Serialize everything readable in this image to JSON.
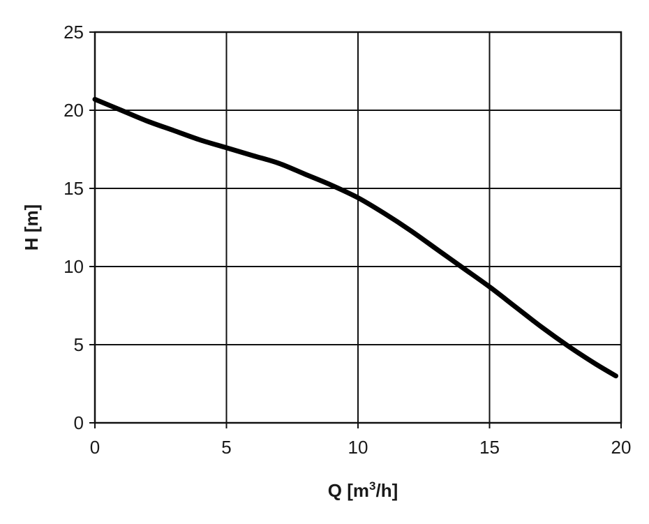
{
  "chart_data": {
    "type": "line",
    "title": "",
    "xlabel": "Q [m",
    "xlabel_sup": "3",
    "xlabel_tail": "/h]",
    "ylabel": "H [m]",
    "xlim": [
      0,
      20
    ],
    "ylim": [
      0,
      25
    ],
    "xticks": [
      0,
      5,
      10,
      15,
      20
    ],
    "yticks": [
      0,
      5,
      10,
      15,
      20,
      25
    ],
    "grid": true,
    "legend": "none",
    "line_color": "#000000",
    "grid_color": "#111111",
    "series": [
      {
        "x": [
          0,
          1,
          2,
          3,
          4,
          5,
          6,
          7,
          8,
          9,
          10,
          11,
          12,
          13,
          14,
          15,
          16,
          17,
          18,
          19,
          19.8
        ],
        "y": [
          20.7,
          20.0,
          19.3,
          18.7,
          18.1,
          17.6,
          17.1,
          16.6,
          15.9,
          15.2,
          14.4,
          13.4,
          12.3,
          11.1,
          9.9,
          8.7,
          7.4,
          6.1,
          4.9,
          3.8,
          3.0
        ]
      }
    ]
  }
}
